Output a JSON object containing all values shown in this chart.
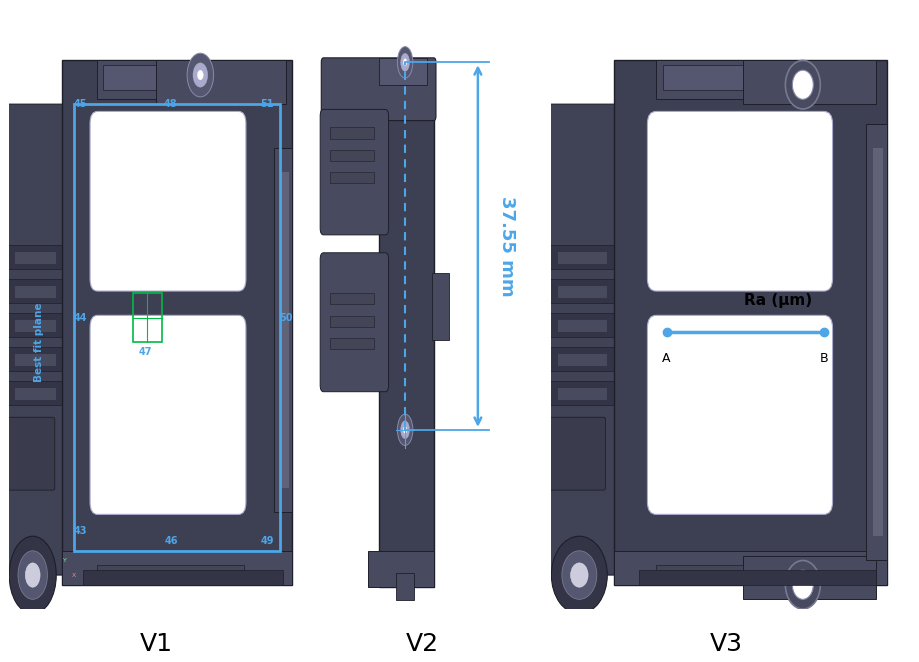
{
  "background_color": "#ffffff",
  "panel_labels": [
    "V1",
    "V2",
    "V3"
  ],
  "panel_label_fontsize": 18,
  "part_color_main": "#3d3f52",
  "part_color_dark": "#2a2c3b",
  "part_color_mid": "#484a60",
  "part_color_light": "#555770",
  "part_color_lighter": "#606278",
  "part_color_edge": "#1e1f2a",
  "white_cutout": "#ffffff",
  "blue_color": "#4da6e8",
  "green_color": "#00bb44",
  "dim_text": "37.55 mm",
  "surface_text": "Ra (μm)",
  "best_fit_text": "Best fit plane",
  "ra_label_a": "A",
  "ra_label_b": "B",
  "label_fontsize": 7,
  "dim_fontsize": 13
}
